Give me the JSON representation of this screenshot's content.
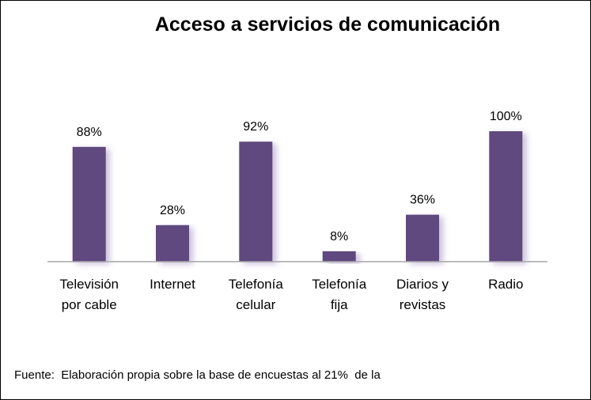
{
  "chart_data": {
    "type": "bar",
    "title": "Acceso a servicios de comunicación",
    "categories": [
      [
        "Televisión",
        "por cable"
      ],
      [
        "Internet"
      ],
      [
        "Telefonía",
        "celular"
      ],
      [
        "Telefonía",
        "fija"
      ],
      [
        "Diarios y",
        "revistas"
      ],
      [
        "Radio"
      ]
    ],
    "values": [
      88,
      28,
      92,
      8,
      36,
      100
    ],
    "data_labels": [
      "88%",
      "28%",
      "92%",
      "8%",
      "36%",
      "100%"
    ],
    "ylim": [
      0,
      100
    ],
    "grid": false,
    "legend": "none",
    "bar_color": "#5F4A7E"
  },
  "source_note": "Fuente:  Elaboración propia sobre la base de encuestas al 21%  de la"
}
